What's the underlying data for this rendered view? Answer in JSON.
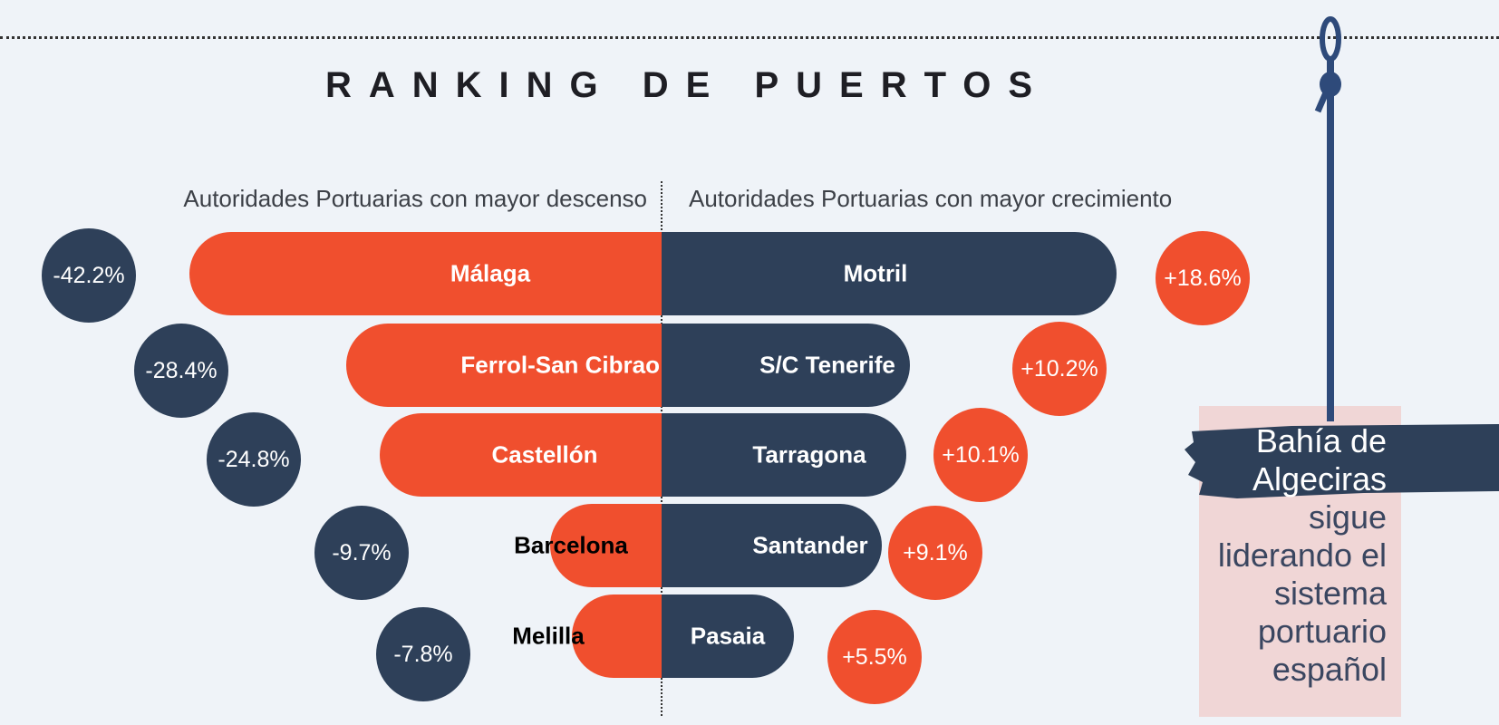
{
  "title": "RANKING DE PUERTOS",
  "subtitles": {
    "left": "Autoridades Portuarias con mayor descenso",
    "right": "Autoridades Portuarias con mayor crecimiento"
  },
  "colors": {
    "navy": "#2e4059",
    "orange": "#f04f2e",
    "background": "#eff3f8",
    "note_box": "#f0d6d6"
  },
  "chart_data": {
    "type": "bar",
    "title": "RANKING DE PUERTOS",
    "series": [
      {
        "name": "Autoridades Portuarias con mayor descenso",
        "categories": [
          "Málaga",
          "Ferrol-San Cibrao",
          "Castellón",
          "Barcelona",
          "Melilla"
        ],
        "values": [
          -42.2,
          -28.4,
          -24.8,
          -9.7,
          -7.8
        ],
        "labels": [
          "-42.2%",
          "-28.4%",
          "-24.8%",
          "-9.7%",
          "-7.8%"
        ]
      },
      {
        "name": "Autoridades Portuarias con mayor crecimiento",
        "categories": [
          "Motril",
          "S/C Tenerife",
          "Tarragona",
          "Santander",
          "Pasaia"
        ],
        "values": [
          18.6,
          10.2,
          10.1,
          9.1,
          5.5
        ],
        "labels": [
          "+18.6%",
          "+10.2%",
          "+10.1%",
          "+9.1%",
          "+5.5%"
        ]
      }
    ]
  },
  "note": {
    "highlight_lines": [
      "Bahía de",
      "Algeciras"
    ],
    "lines": [
      "sigue",
      "liderando el",
      "sistema",
      "portuario",
      "español"
    ]
  }
}
